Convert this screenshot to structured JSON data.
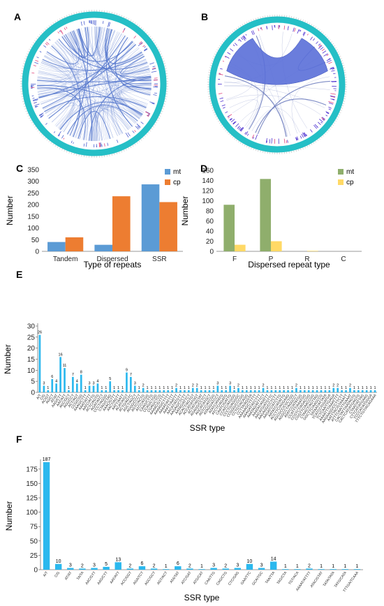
{
  "panels": {
    "A": {
      "label": "A",
      "ring_color": "#25BFC6",
      "link_color": "#5577CC"
    },
    "B": {
      "label": "B",
      "ring_color": "#25BFC6",
      "band_color": "#5A6FD8",
      "tick_color": "#4B2FD0"
    }
  },
  "chart_data": [
    {
      "panel": "C",
      "type": "bar",
      "categories": [
        "Tandem",
        "Dispersed",
        "SSR"
      ],
      "series": [
        {
          "name": "mt",
          "color": "#5B9BD5",
          "values": [
            40,
            28,
            287
          ]
        },
        {
          "name": "cp",
          "color": "#ED7D31",
          "values": [
            60,
            236,
            211
          ]
        }
      ],
      "ylim": [
        0,
        350
      ],
      "yticks": [
        0,
        50,
        100,
        150,
        200,
        250,
        300,
        350
      ],
      "xlabel": "Type of repeats",
      "ylabel": "Number",
      "legend": "top-right",
      "grid": false
    },
    {
      "panel": "D",
      "type": "bar",
      "categories": [
        "F",
        "P",
        "R",
        "C"
      ],
      "series": [
        {
          "name": "mt",
          "color": "#8FAE6C",
          "values": [
            92,
            143,
            0,
            0
          ]
        },
        {
          "name": "cp",
          "color": "#FFD966",
          "values": [
            13,
            20,
            1,
            0
          ]
        }
      ],
      "ylim": [
        0,
        160
      ],
      "yticks": [
        0,
        20,
        40,
        60,
        80,
        100,
        120,
        140,
        160
      ],
      "xlabel": "Dispersed repeat type",
      "ylabel": "Number",
      "legend": "top-right",
      "grid": false
    },
    {
      "panel": "E",
      "type": "bar",
      "color": "#2BB8EE",
      "categories": [
        "A/T",
        "C/G",
        "AC/GT",
        "AG/CT",
        "AT/AT",
        "AAG/CTT",
        "AAT/ATT",
        "AGC/GCT",
        "AGG/CCT",
        "ACT/AGT",
        "CCG/CGG",
        "AAAG/CTTT",
        "AAAT/ATTT",
        "AATC/ATTG",
        "ACTC/AGTG",
        "AGAT/ATCT",
        "CCCT/AGGG",
        "CTAG/CTAG",
        "AAAC/GTTT",
        "AACT/AGTT",
        "AATT/AATT",
        "ACAT/ATGT",
        "ACTG/AGTC",
        "AGCT/AGCT",
        "AGGG/CCCT",
        "AGTC/ACTG",
        "ATCC/ATGG",
        "CAAG/CTTG",
        "CCAG/CTGG",
        "CGAG/CTCG",
        "AAAAC/GTTTT",
        "AAAAG/CTTTT",
        "AAAAT/ATTTT",
        "AAATT/AATTT",
        "AACAT/ATGTT",
        "AAGAG/CTCTT",
        "AATAG/ATTCT",
        "ACACT/AGTGT",
        "ACCAT/ATGGT",
        "ACTAT/AGTAT",
        "AGAGG/CCTCT",
        "AGCAT/ATGCT",
        "AGTCC/ATCGG",
        "ATAGG/ATCCT",
        "ATATC/ATATG",
        "ATCTC/AGATG",
        "CAATC/GATTG",
        "CCATC/ATGGG",
        "CCCTG/AGGGC",
        "CCGGG/CCCGG",
        "CCTGT/ACAGG",
        "CCTTA/AGGTA",
        "AAAAAG/CTTTTT",
        "AAAGAT/ATCTTT",
        "AAATAG/ATTTCT",
        "AAATAT/ATATTT",
        "AACATG/ATGTTC",
        "AAGAGG/CCTCTT",
        "AAGATC/ATCTTG",
        "AATATC/ATATTG",
        "ACCTTC/AGGAAG",
        "AGCGCC/CGCTGG",
        "AGGCCT/AGGCCT",
        "ATATCC/ATATGG",
        "CCATTT/AAATGG",
        "CCGTCT/AGACGG",
        "CGGTTC/AACCGG",
        "CTAACT/AGTTAG",
        "GGCTTC/AAGCCG",
        "TATAAT/ATTATA",
        "TCATCC/GGATGA",
        "TCTCAA/TTGAGA",
        "AAAATTT/AAATTTT",
        "AAGAAGG/CCTTCTT",
        "AATTTAC/GTAAATT",
        "ATTTCAA/TTGAAAT",
        "CACTATT/AATAGTG",
        "CACTCAT/ATGAGTG",
        "CTAAT/ATTAG",
        "CTTCAT/ATGAAG",
        "TCCCAT/ATGGGA",
        "TTTCTGT/ACAGAAA"
      ],
      "values": [
        26,
        3,
        1,
        6,
        4,
        16,
        11,
        1,
        7,
        4,
        8,
        1,
        3,
        3,
        4,
        1,
        1,
        5,
        1,
        1,
        1,
        9,
        7,
        3,
        1,
        2,
        1,
        1,
        1,
        1,
        1,
        1,
        1,
        2,
        1,
        1,
        1,
        2,
        2,
        1,
        1,
        1,
        1,
        3,
        1,
        1,
        3,
        1,
        2,
        1,
        1,
        1,
        1,
        1,
        2,
        1,
        1,
        1,
        1,
        1,
        1,
        1,
        2,
        1,
        1,
        1,
        1,
        1,
        1,
        1,
        1,
        2,
        2,
        1,
        1,
        2,
        1,
        1,
        1,
        1,
        1,
        1
      ],
      "ylim": [
        0,
        30
      ],
      "yticks": [
        0,
        5,
        10,
        15,
        20,
        25,
        30
      ],
      "xlabel": "SSR type",
      "ylabel": "Number",
      "grid": false
    },
    {
      "panel": "F",
      "type": "bar",
      "color": "#2BB8EE",
      "categories": [
        "A/T",
        "C/G",
        "AT/AT",
        "TA/TA",
        "AAC/GTT",
        "AAG/CTT",
        "AAT/ATT",
        "ACC/GGT",
        "AGA/TCT",
        "AGC/GCT",
        "AGT/ACT",
        "ATA/TAT",
        "ATC/GAT",
        "ATG/CAT",
        "CAA/TTG",
        "CAG/CTG",
        "CTC/GAG",
        "GAA/TTC",
        "GCA/TGC",
        "TAA/TTA",
        "TAG/CTA",
        "TGT/ACA",
        "AAAAT/ATTTT",
        "ATAC/GTAT",
        "TATA/TATA",
        "TATG/CATA",
        "TTTGA/TCAAA"
      ],
      "values": [
        187,
        10,
        3,
        2,
        3,
        5,
        13,
        2,
        6,
        2,
        1,
        6,
        2,
        1,
        3,
        2,
        3,
        10,
        3,
        14,
        1,
        1,
        2,
        1,
        1,
        1,
        1
      ],
      "ylim": [
        0,
        187
      ],
      "yticks": [
        0,
        25,
        50,
        75,
        100,
        125,
        150,
        175
      ],
      "xlabel": "SSR type",
      "ylabel": "Number",
      "grid": false
    }
  ]
}
